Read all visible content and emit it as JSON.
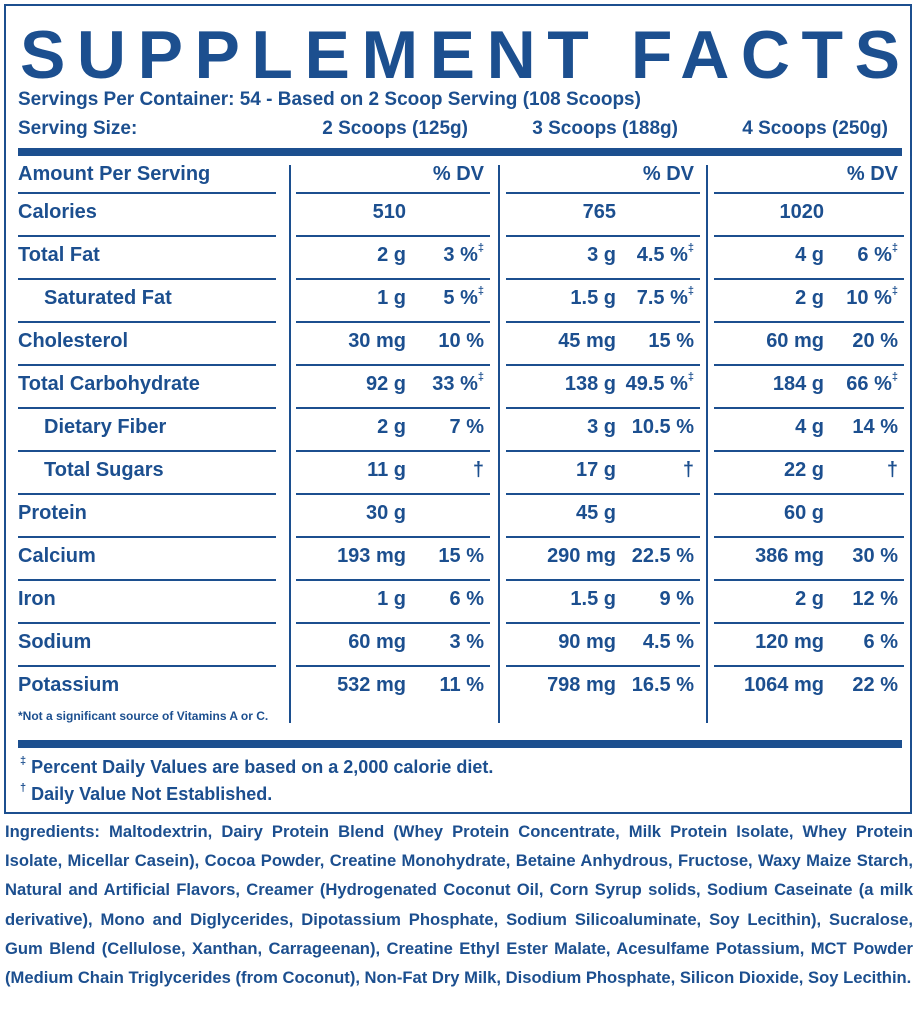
{
  "title": "SUPPLEMENT FACTS",
  "servings_per_container": "Servings Per Container: 54 - Based on 2 Scoop Serving (108 Scoops)",
  "serving_size": {
    "label": "Serving Size:",
    "options": [
      "2 Scoops (125g)",
      "3 Scoops (188g)",
      "4 Scoops (250g)"
    ]
  },
  "table": {
    "header": "Amount Per Serving",
    "dv_headers": [
      "% DV",
      "% DV",
      "% DV"
    ],
    "rows": [
      {
        "name": "Calories",
        "cells": [
          {
            "amount": "510"
          },
          {
            "amount": "765"
          },
          {
            "amount": "1020"
          }
        ]
      },
      {
        "name": "Total Fat",
        "cells": [
          {
            "amount": "2 g",
            "dv": "3 %",
            "note": "‡"
          },
          {
            "amount": "3 g",
            "dv": "4.5 %",
            "note": "‡"
          },
          {
            "amount": "4 g",
            "dv": "6 %",
            "note": "‡"
          }
        ]
      },
      {
        "name": "Saturated Fat",
        "indent": true,
        "cells": [
          {
            "amount": "1 g",
            "dv": "5 %",
            "note": "‡"
          },
          {
            "amount": "1.5 g",
            "dv": "7.5 %",
            "note": "‡"
          },
          {
            "amount": "2 g",
            "dv": "10 %",
            "note": "‡"
          }
        ]
      },
      {
        "name": "Cholesterol",
        "cells": [
          {
            "amount": "30 mg",
            "dv": "10 %"
          },
          {
            "amount": "45 mg",
            "dv": "15 %"
          },
          {
            "amount": "60 mg",
            "dv": "20 %"
          }
        ]
      },
      {
        "name": "Total Carbohydrate",
        "cells": [
          {
            "amount": "92 g",
            "dv": "33 %",
            "note": "‡"
          },
          {
            "amount": "138 g",
            "dv": "49.5 %",
            "note": "‡"
          },
          {
            "amount": "184 g",
            "dv": "66 %",
            "note": "‡"
          }
        ]
      },
      {
        "name": "Dietary Fiber",
        "indent": true,
        "cells": [
          {
            "amount": "2 g",
            "dv": "7 %"
          },
          {
            "amount": "3 g",
            "dv": "10.5 %"
          },
          {
            "amount": "4 g",
            "dv": "14 %"
          }
        ]
      },
      {
        "name": "Total Sugars",
        "indent": true,
        "cells": [
          {
            "amount": "11 g",
            "dv": "†"
          },
          {
            "amount": "17 g",
            "dv": "†"
          },
          {
            "amount": "22 g",
            "dv": "†"
          }
        ]
      },
      {
        "name": "Protein",
        "cells": [
          {
            "amount": "30 g"
          },
          {
            "amount": "45 g"
          },
          {
            "amount": "60 g"
          }
        ]
      },
      {
        "name": "Calcium",
        "cells": [
          {
            "amount": "193 mg",
            "dv": "15 %"
          },
          {
            "amount": "290 mg",
            "dv": "22.5 %"
          },
          {
            "amount": "386 mg",
            "dv": "30 %"
          }
        ]
      },
      {
        "name": "Iron",
        "cells": [
          {
            "amount": "1 g",
            "dv": "6 %"
          },
          {
            "amount": "1.5 g",
            "dv": "9 %"
          },
          {
            "amount": "2 g",
            "dv": "12 %"
          }
        ]
      },
      {
        "name": "Sodium",
        "cells": [
          {
            "amount": "60 mg",
            "dv": "3 %"
          },
          {
            "amount": "90 mg",
            "dv": "4.5 %"
          },
          {
            "amount": "120 mg",
            "dv": "6 %"
          }
        ]
      },
      {
        "name": "Potassium",
        "cells": [
          {
            "amount": "532 mg",
            "dv": "11 %"
          },
          {
            "amount": "798 mg",
            "dv": "16.5 %"
          },
          {
            "amount": "1064 mg",
            "dv": "22 %"
          }
        ]
      }
    ],
    "table_note": "*Not a significant source of Vitamins A or C."
  },
  "footnotes": [
    {
      "symbol": "‡",
      "text": "Percent Daily Values are based on a 2,000 calorie diet."
    },
    {
      "symbol": "†",
      "text": "Daily Value Not Established."
    }
  ],
  "ingredients": {
    "label": "Ingredients:",
    "text": "Maltodextrin, Dairy Protein Blend (Whey Protein Concentrate, Milk Protein Isolate, Whey Protein Isolate, Micellar Casein), Cocoa Powder, Creatine Monohydrate, Betaine Anhydrous, Fructose, Waxy Maize Starch, Natural and Artificial Flavors, Creamer (Hydrogenated Coconut Oil, Corn Syrup solids, Sodium Caseinate (a milk derivative), Mono and Diglycerides, Dipotassium Phosphate, Sodium Silicoaluminate, Soy Lecithin), Sucralose, Gum Blend (Cellulose, Xanthan, Carrageenan), Creatine Ethyl Ester Malate, Acesulfame Potassium, MCT Powder (Medium Chain Triglycerides (from Coconut), Non-Fat Dry Milk, Disodium Phosphate, Silicon Dioxide, Soy Lecithin."
  }
}
